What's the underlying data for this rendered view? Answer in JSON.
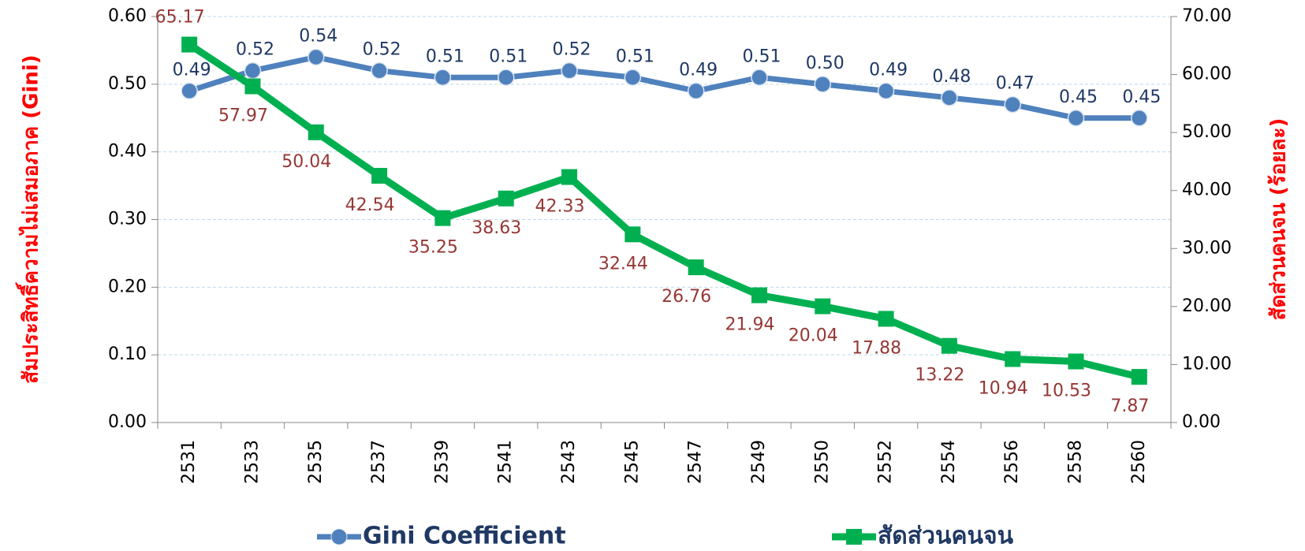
{
  "chart_data": {
    "type": "line",
    "categories": [
      "2531",
      "2533",
      "2535",
      "2537",
      "2539",
      "2541",
      "2543",
      "2545",
      "2547",
      "2549",
      "2550",
      "2552",
      "2554",
      "2556",
      "2558",
      "2560"
    ],
    "series": [
      {
        "name": "Gini Coefficient",
        "color": "#4f81bd",
        "values": [
          0.49,
          0.52,
          0.54,
          0.52,
          0.51,
          0.51,
          0.52,
          0.51,
          0.49,
          0.51,
          0.5,
          0.49,
          0.48,
          0.47,
          0.45,
          0.45
        ],
        "value_labels": [
          "0.49",
          "0.52",
          "0.54",
          "0.52",
          "0.51",
          "0.51",
          "0.52",
          "0.51",
          "0.49",
          "0.51",
          "0.50",
          "0.49",
          "0.48",
          "0.47",
          "0.45",
          "0.45"
        ]
      },
      {
        "name": "สัดส่วนคนจน",
        "color": "#00b050",
        "axis": "y2",
        "values": [
          65.17,
          57.97,
          50.04,
          42.54,
          35.25,
          38.63,
          42.33,
          32.44,
          26.76,
          21.94,
          20.04,
          17.88,
          13.22,
          10.94,
          10.53,
          7.87
        ]
      }
    ],
    "ylabel": "สัมประสิทธิ์ความไม่เสมอภาค (Gini)",
    "y2label": "สัดส่วนคนจน (ร้อยละ)",
    "ylim": [
      0,
      0.6
    ],
    "yticks": [
      {
        "value": 0,
        "label": "0.00"
      },
      {
        "value": 0.1,
        "label": "0.10"
      },
      {
        "value": 0.2,
        "label": "0.20"
      },
      {
        "value": 0.3,
        "label": "0.30"
      },
      {
        "value": 0.4,
        "label": "0.40"
      },
      {
        "value": 0.5,
        "label": "0.50"
      },
      {
        "value": 0.6,
        "label": "0.60"
      }
    ],
    "y2lim": [
      0,
      70
    ],
    "y2ticks": [
      {
        "value": 0,
        "label": "0.00"
      },
      {
        "value": 10,
        "label": "10.00"
      },
      {
        "value": 20,
        "label": "20.00"
      },
      {
        "value": 30,
        "label": "30.00"
      },
      {
        "value": 40,
        "label": "40.00"
      },
      {
        "value": 50,
        "label": "50.00"
      },
      {
        "value": 60,
        "label": "60.00"
      },
      {
        "value": 70,
        "label": "70.00"
      }
    ],
    "grid": true,
    "legend": "bottom"
  }
}
